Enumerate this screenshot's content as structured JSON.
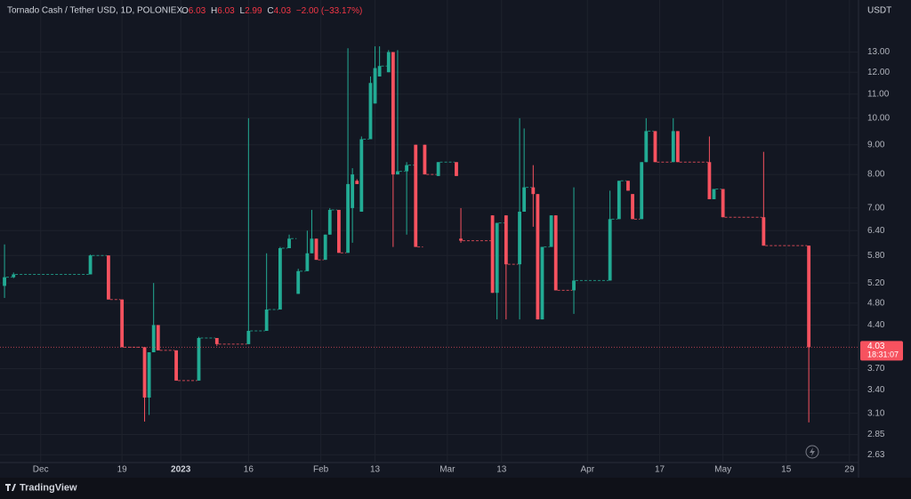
{
  "chart_data": {
    "type": "candlestick",
    "title": "Tornado Cash / Tether USD, 1D, POLONIEX",
    "ohlc_legend": [
      {
        "label": "O",
        "value": "6.03"
      },
      {
        "label": "H",
        "value": "6.03"
      },
      {
        "label": "L",
        "value": "2.99"
      },
      {
        "label": "C",
        "value": "4.03"
      }
    ],
    "change": "−2.00 (−33.17%)",
    "currency": "USDT",
    "footer": "TradingView",
    "up_color": "#22ab94",
    "down_color": "#f7525f",
    "log_scale": true,
    "grid": true,
    "x": [
      "2022-11-23",
      "2022-11-25",
      "2022-12-12",
      "2022-12-16",
      "2022-12-19",
      "2022-12-24",
      "2022-12-25",
      "2022-12-26",
      "2022-12-27",
      "2022-12-31",
      "2023-01-05",
      "2023-01-09",
      "2023-01-16",
      "2023-01-20",
      "2023-01-23",
      "2023-01-25",
      "2023-01-27",
      "2023-01-29",
      "2023-01-30",
      "2023-01-31",
      "2023-02-02",
      "2023-02-03",
      "2023-02-05",
      "2023-02-07",
      "2023-02-08",
      "2023-02-09",
      "2023-02-10",
      "2023-02-12",
      "2023-02-13",
      "2023-02-14",
      "2023-02-16",
      "2023-02-17",
      "2023-02-18",
      "2023-02-20",
      "2023-02-22",
      "2023-02-24",
      "2023-02-27",
      "2023-03-03",
      "2023-03-04",
      "2023-03-11",
      "2023-03-12",
      "2023-03-14",
      "2023-03-17",
      "2023-03-18",
      "2023-03-20",
      "2023-03-21",
      "2023-03-22",
      "2023-03-24",
      "2023-03-25",
      "2023-03-29",
      "2023-04-06",
      "2023-04-08",
      "2023-04-10",
      "2023-04-11",
      "2023-04-13",
      "2023-04-14",
      "2023-04-16",
      "2023-04-20",
      "2023-04-21",
      "2023-04-28",
      "2023-04-29",
      "2023-05-01",
      "2023-05-10",
      "2023-05-20"
    ],
    "open": [
      5.14,
      5.32,
      5.38,
      5.8,
      4.87,
      4.03,
      3.3,
      3.95,
      4.4,
      3.98,
      3.53,
      4.18,
      4.08,
      4.3,
      4.68,
      5.97,
      4.98,
      5.45,
      5.85,
      6.2,
      5.7,
      6.3,
      6.95,
      5.86,
      7.0,
      7.8,
      6.9,
      9.2,
      10.6,
      11.8,
      12.0,
      13.0,
      8.0,
      8.1,
      9.0,
      9.0,
      7.95,
      8.4,
      6.2,
      6.8,
      5.0,
      6.8,
      5.6,
      6.9,
      7.6,
      7.4,
      4.5,
      6.0,
      6.8,
      5.05,
      5.25,
      6.7,
      7.8,
      7.4,
      6.7,
      8.4,
      9.5,
      8.4,
      9.5,
      8.4,
      7.25,
      7.55,
      6.75,
      6.03
    ],
    "high": [
      6.06,
      5.42,
      5.82,
      5.8,
      4.87,
      4.03,
      3.95,
      5.2,
      4.4,
      3.98,
      4.2,
      4.18,
      10.0,
      5.85,
      6.0,
      6.3,
      5.5,
      6.4,
      6.95,
      6.2,
      6.3,
      7.0,
      6.95,
      13.2,
      8.2,
      7.85,
      9.3,
      11.8,
      13.3,
      13.3,
      13.1,
      13.0,
      13.1,
      8.4,
      9.0,
      9.0,
      8.4,
      8.4,
      7.0,
      6.8,
      6.6,
      6.8,
      10.0,
      9.6,
      8.3,
      7.4,
      6.0,
      6.8,
      6.8,
      7.6,
      7.5,
      7.8,
      7.8,
      7.4,
      8.4,
      10.0,
      9.5,
      10.0,
      9.5,
      9.3,
      7.55,
      7.55,
      8.75,
      6.03
    ],
    "low": [
      4.9,
      5.3,
      5.38,
      4.87,
      4.03,
      3.0,
      3.08,
      3.95,
      3.98,
      3.53,
      3.53,
      4.05,
      4.08,
      4.3,
      4.68,
      5.97,
      4.98,
      5.45,
      5.85,
      5.7,
      5.7,
      6.3,
      5.86,
      5.86,
      6.1,
      7.7,
      6.9,
      9.2,
      10.6,
      11.8,
      12.0,
      6.0,
      8.0,
      6.3,
      6.0,
      8.0,
      7.95,
      7.95,
      6.1,
      5.0,
      4.5,
      4.5,
      4.5,
      6.9,
      6.5,
      4.5,
      4.5,
      6.0,
      5.05,
      4.6,
      5.25,
      6.7,
      7.5,
      6.7,
      6.7,
      8.4,
      8.4,
      8.4,
      8.4,
      7.25,
      7.25,
      6.75,
      6.03,
      2.99
    ],
    "close": [
      5.32,
      5.38,
      5.8,
      4.87,
      4.03,
      3.3,
      3.95,
      4.4,
      3.98,
      3.53,
      4.18,
      4.08,
      4.3,
      4.68,
      5.97,
      6.2,
      5.45,
      5.85,
      6.2,
      5.7,
      6.3,
      6.95,
      5.86,
      7.7,
      8.0,
      7.7,
      9.2,
      11.5,
      12.2,
      12.3,
      13.0,
      8.0,
      8.1,
      8.3,
      6.0,
      8.0,
      8.4,
      7.95,
      6.15,
      5.0,
      6.6,
      5.6,
      6.9,
      7.6,
      7.4,
      4.5,
      6.0,
      6.8,
      5.05,
      5.25,
      6.7,
      7.8,
      7.5,
      6.7,
      8.4,
      9.5,
      8.4,
      9.5,
      8.4,
      7.25,
      7.55,
      6.75,
      6.03,
      4.03
    ],
    "last_price": 4.03,
    "countdown": "18:31:07",
    "xlim": [
      "2022-11-22",
      "2023-05-31"
    ],
    "xticks": [
      {
        "value": "2022-12-01",
        "label": "Dec"
      },
      {
        "value": "2022-12-19",
        "label": "19"
      },
      {
        "value": "2023-01-01",
        "label": "2023"
      },
      {
        "value": "2023-01-16",
        "label": "16"
      },
      {
        "value": "2023-02-01",
        "label": "Feb"
      },
      {
        "value": "2023-02-13",
        "label": "13"
      },
      {
        "value": "2023-03-01",
        "label": "Mar"
      },
      {
        "value": "2023-03-13",
        "label": "13"
      },
      {
        "value": "2023-04-01",
        "label": "Apr"
      },
      {
        "value": "2023-04-17",
        "label": "17"
      },
      {
        "value": "2023-05-01",
        "label": "May"
      },
      {
        "value": "2023-05-15",
        "label": "15"
      },
      {
        "value": "2023-05-29",
        "label": "29"
      }
    ],
    "ylim": [
      2.55,
      15.0
    ],
    "yticks": [
      {
        "value": 2.63,
        "label": "2.63"
      },
      {
        "value": 2.85,
        "label": "2.85"
      },
      {
        "value": 3.1,
        "label": "3.10"
      },
      {
        "value": 3.4,
        "label": "3.40"
      },
      {
        "value": 3.7,
        "label": "3.70"
      },
      {
        "value": 4.4,
        "label": "4.40"
      },
      {
        "value": 4.8,
        "label": "4.80"
      },
      {
        "value": 5.2,
        "label": "5.20"
      },
      {
        "value": 5.8,
        "label": "5.80"
      },
      {
        "value": 6.4,
        "label": "6.40"
      },
      {
        "value": 7,
        "label": "7.00"
      },
      {
        "value": 8,
        "label": "8.00"
      },
      {
        "value": 9,
        "label": "9.00"
      },
      {
        "value": 10,
        "label": "10.00"
      },
      {
        "value": 11,
        "label": "11.00"
      },
      {
        "value": 12,
        "label": "12.00"
      },
      {
        "value": 13,
        "label": "13.00"
      }
    ]
  }
}
